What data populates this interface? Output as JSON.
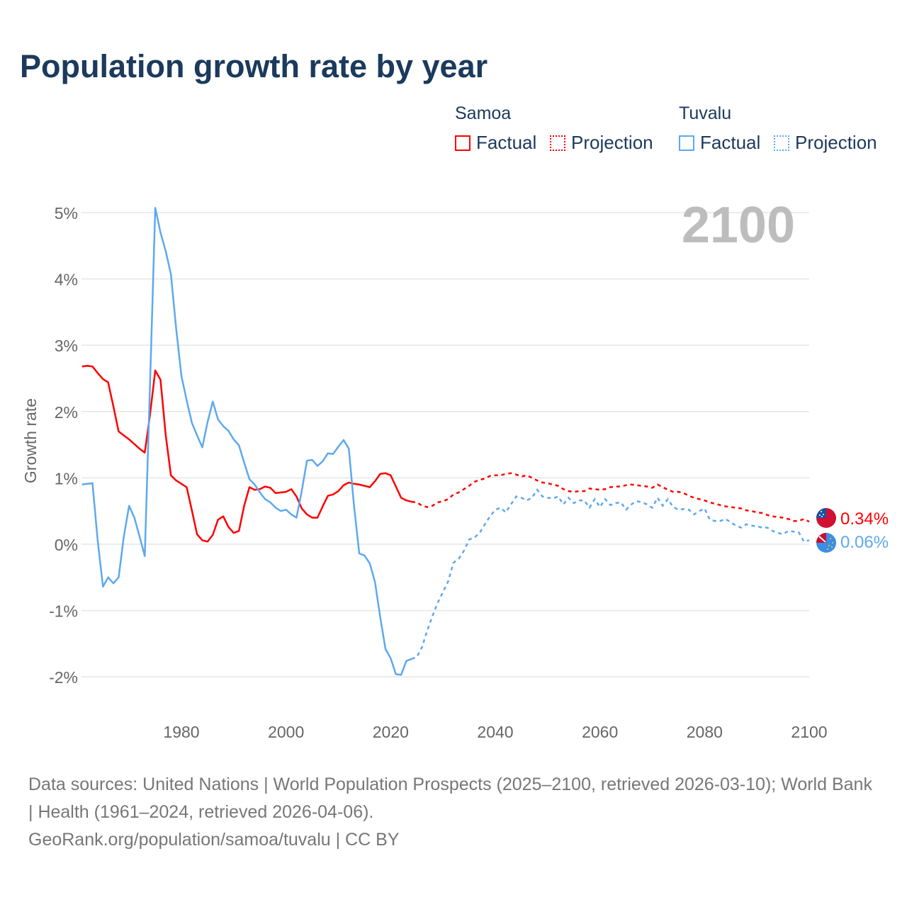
{
  "title": "Population growth rate by year",
  "legend": {
    "groups": [
      {
        "name": "Samoa",
        "color": "#ff0000",
        "factual": "Factual",
        "projection": "Projection"
      },
      {
        "name": "Tuvalu",
        "color": "#5ea8f0",
        "factual": "Factual",
        "projection": "Projection"
      }
    ]
  },
  "year_label": "2100",
  "footer": {
    "sources": "Data sources: United Nations | World Population Prospects (2025–2100, retrieved 2026-03-10); World Bank | Health (1961–2024, retrieved 2026-04-06).",
    "credit": "GeoRank.org/population/samoa/tuvalu | CC BY"
  },
  "chart_data": {
    "type": "line",
    "title": "Population growth rate by year",
    "xlabel": "",
    "ylabel": "Growth rate",
    "xlim": [
      1961,
      2100
    ],
    "ylim": [
      -2.5,
      5.2
    ],
    "yticks": [
      5,
      4,
      3,
      2,
      1,
      0,
      -1,
      -2
    ],
    "ytick_labels": [
      "5%",
      "4%",
      "3%",
      "2%",
      "1%",
      "0%",
      "-1%",
      "-2%"
    ],
    "xticks": [
      1980,
      2000,
      2020,
      2040,
      2060,
      2080,
      2100
    ],
    "xtick_labels": [
      "1980",
      "2000",
      "2020",
      "2040",
      "2060",
      "2080",
      "2100"
    ],
    "grid": true,
    "series": [
      {
        "name": "Samoa",
        "color": "#ff0000",
        "end_label": "0.34%",
        "factual_start": 1961,
        "factual": [
          2.68,
          2.69,
          2.68,
          2.58,
          2.49,
          2.44,
          2.08,
          1.7,
          1.64,
          1.58,
          1.51,
          1.44,
          1.38,
          1.95,
          2.62,
          2.48,
          1.65,
          1.04,
          0.96,
          0.91,
          0.86,
          0.51,
          0.15,
          0.06,
          0.04,
          0.14,
          0.37,
          0.42,
          0.26,
          0.17,
          0.2,
          0.58,
          0.86,
          0.82,
          0.83,
          0.87,
          0.85,
          0.77,
          0.78,
          0.79,
          0.83,
          0.72,
          0.54,
          0.45,
          0.4,
          0.4,
          0.57,
          0.73,
          0.75,
          0.8,
          0.89,
          0.93,
          0.91,
          0.9,
          0.88,
          0.86,
          0.95,
          1.06,
          1.07,
          1.04,
          0.87,
          0.7,
          0.66,
          0.64
        ],
        "projection_start": 2025,
        "projection": [
          0.63,
          0.58,
          0.56,
          0.58,
          0.63,
          0.65,
          0.68,
          0.75,
          0.78,
          0.83,
          0.88,
          0.94,
          0.97,
          0.99,
          1.03,
          1.04,
          1.04,
          1.06,
          1.07,
          1.05,
          1.02,
          1.04,
          1.0,
          0.96,
          0.93,
          0.92,
          0.9,
          0.88,
          0.83,
          0.8,
          0.79,
          0.8,
          0.8,
          0.84,
          0.83,
          0.82,
          0.83,
          0.86,
          0.87,
          0.87,
          0.89,
          0.9,
          0.89,
          0.88,
          0.87,
          0.85,
          0.9,
          0.86,
          0.82,
          0.79,
          0.79,
          0.77,
          0.73,
          0.7,
          0.68,
          0.66,
          0.63,
          0.61,
          0.59,
          0.57,
          0.56,
          0.55,
          0.54,
          0.51,
          0.5,
          0.48,
          0.47,
          0.44,
          0.42,
          0.41,
          0.4,
          0.38,
          0.35,
          0.35,
          0.38,
          0.34
        ]
      },
      {
        "name": "Tuvalu",
        "color": "#5ea8f0",
        "end_label": "0.06%",
        "factual_start": 1961,
        "factual": [
          0.9,
          0.91,
          0.92,
          0.05,
          -0.64,
          -0.5,
          -0.59,
          -0.5,
          0.12,
          0.58,
          0.4,
          0.12,
          -0.18,
          2.4,
          5.07,
          4.7,
          4.42,
          4.07,
          3.25,
          2.54,
          2.17,
          1.83,
          1.64,
          1.46,
          1.84,
          2.15,
          1.88,
          1.78,
          1.71,
          1.58,
          1.49,
          1.23,
          0.98,
          0.9,
          0.78,
          0.68,
          0.63,
          0.55,
          0.5,
          0.52,
          0.45,
          0.4,
          0.8,
          1.26,
          1.27,
          1.18,
          1.25,
          1.37,
          1.36,
          1.47,
          1.57,
          1.44,
          0.58,
          -0.14,
          -0.17,
          -0.29,
          -0.57,
          -1.1,
          -1.58,
          -1.72,
          -1.96,
          -1.97,
          -1.76,
          -1.73
        ],
        "projection_start": 2025,
        "projection": [
          -1.7,
          -1.55,
          -1.3,
          -1.08,
          -0.88,
          -0.72,
          -0.56,
          -0.28,
          -0.22,
          -0.1,
          0.07,
          0.1,
          0.17,
          0.3,
          0.42,
          0.52,
          0.55,
          0.48,
          0.6,
          0.72,
          0.7,
          0.66,
          0.7,
          0.82,
          0.72,
          0.7,
          0.69,
          0.72,
          0.6,
          0.7,
          0.62,
          0.66,
          0.66,
          0.55,
          0.68,
          0.56,
          0.68,
          0.59,
          0.62,
          0.63,
          0.52,
          0.6,
          0.65,
          0.63,
          0.6,
          0.55,
          0.7,
          0.58,
          0.68,
          0.56,
          0.52,
          0.53,
          0.52,
          0.45,
          0.5,
          0.54,
          0.37,
          0.35,
          0.35,
          0.38,
          0.33,
          0.28,
          0.25,
          0.3,
          0.28,
          0.27,
          0.25,
          0.25,
          0.2,
          0.17,
          0.15,
          0.2,
          0.19,
          0.18,
          0.04,
          0.06
        ]
      }
    ]
  }
}
